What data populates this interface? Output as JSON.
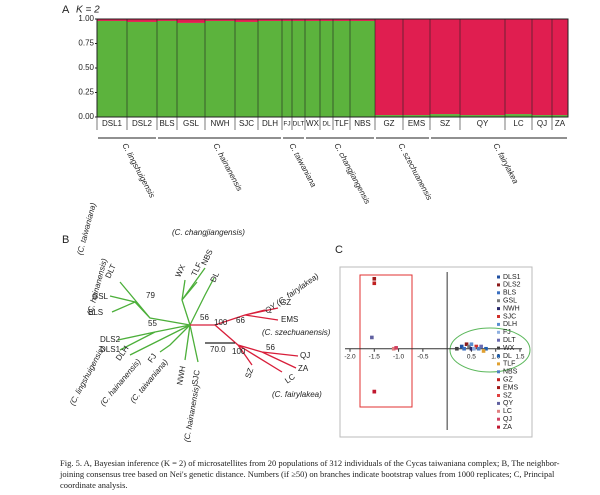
{
  "figure": {
    "panel_a": {
      "label": "A",
      "k_label": "K = 2",
      "ylim": [
        0,
        1
      ],
      "yticks": [
        {
          "value": 0,
          "label": "0.00"
        },
        {
          "value": 0.25,
          "label": "0.25"
        },
        {
          "value": 0.5,
          "label": "0.50"
        },
        {
          "value": 0.75,
          "label": "0.75"
        },
        {
          "value": 1,
          "label": "1.00"
        }
      ],
      "populations": [
        "DSL1",
        "DSL2",
        "BLS",
        "GSL",
        "NWH",
        "SJC",
        "DLH",
        "FJ",
        "DLT",
        "WX",
        "DL",
        "TLF",
        "NBS",
        "GZ",
        "EMS",
        "SZ",
        "QY",
        "LC",
        "QJ",
        "ZA"
      ],
      "cluster_1": [
        0.98,
        0.97,
        0.98,
        0.96,
        0.98,
        0.97,
        0.98,
        0.98,
        0.98,
        0.98,
        0.98,
        0.98,
        0.98,
        0.02,
        0.02,
        0.03,
        0.02,
        0.03,
        0.02,
        0.02
      ],
      "cluster_2": [
        0.02,
        0.03,
        0.02,
        0.04,
        0.02,
        0.03,
        0.02,
        0.02,
        0.02,
        0.02,
        0.02,
        0.02,
        0.02,
        0.98,
        0.98,
        0.97,
        0.98,
        0.97,
        0.98,
        0.98
      ],
      "colors": [
        "#5cb33d",
        "#e01e50"
      ],
      "species": [
        "C. lingshuigensis",
        "C. hainanensis",
        "C. taiwaniana",
        "C. changjiangensis",
        "C. szechuanensis",
        "C. fairylakea"
      ]
    },
    "panel_b": {
      "label": "B",
      "scale": "70.0",
      "tips": [
        "(C. changjiangensis)",
        "WX",
        "TLF",
        "NBS",
        "DL",
        "(C. taiwaniana)",
        "DLT",
        "(C. hainanensis)",
        "GSL",
        "BLS",
        "DLS2",
        "DLS1",
        "DLH",
        "FJ",
        "NWH",
        "SJC",
        "(C. lingshuigensis)",
        "(C. hainanensis)",
        "(C. taiwaniana)",
        "(C. hainanensis)",
        "QY (C. fairylakea)",
        "GZ",
        "EMS",
        "(C. szechuanensis)",
        "QJ",
        "ZA",
        "SZ",
        "LC",
        "(C. fairylakea)"
      ],
      "bootstrap": [
        "79",
        "55",
        "56",
        "100",
        "66",
        "100",
        "56"
      ]
    },
    "panel_c": {
      "label": "C",
      "xlim": [
        -2,
        1.5
      ],
      "ylim": [
        -1.8,
        1.7
      ],
      "xticks": [
        {
          "value": -2,
          "label": "-2.0"
        },
        {
          "value": -1.5,
          "label": "-1.5"
        },
        {
          "value": -1,
          "label": "-1.0"
        },
        {
          "value": -0.5,
          "label": "-0.5"
        },
        {
          "value": 0.5,
          "label": "0.5"
        },
        {
          "value": 1,
          "label": "1.0"
        },
        {
          "value": 1.5,
          "label": "1.5"
        }
      ],
      "points": [
        {
          "name": "DLS1",
          "x": 0.3,
          "y": 0.05,
          "color": "#1f4fa0"
        },
        {
          "name": "DLS2",
          "x": 0.4,
          "y": 0.1,
          "color": "#8b1a1a"
        },
        {
          "name": "BLS",
          "x": 0.35,
          "y": 0.0,
          "color": "#3a6fc0"
        },
        {
          "name": "GSL",
          "x": 0.45,
          "y": 0.05,
          "color": "#7a7a7a"
        },
        {
          "name": "NWH",
          "x": 0.5,
          "y": 0.0,
          "color": "#2a2a6a"
        },
        {
          "name": "SJC",
          "x": 0.6,
          "y": 0.05,
          "color": "#d0302a"
        },
        {
          "name": "DLH",
          "x": 0.5,
          "y": 0.1,
          "color": "#5a8fd0"
        },
        {
          "name": "FJ",
          "x": 0.55,
          "y": 0.0,
          "color": "#8fb0e0"
        },
        {
          "name": "DLT",
          "x": 0.7,
          "y": 0.05,
          "color": "#6a6ab0"
        },
        {
          "name": "WX",
          "x": 0.2,
          "y": 0.0,
          "color": "#404040"
        },
        {
          "name": "DL",
          "x": 0.8,
          "y": 0.0,
          "color": "#2060b0"
        },
        {
          "name": "TLF",
          "x": 0.75,
          "y": -0.05,
          "color": "#e0a030"
        },
        {
          "name": "NBS",
          "x": 0.65,
          "y": 0.0,
          "color": "#5080c0"
        },
        {
          "name": "GZ",
          "x": -1.5,
          "y": 1.45,
          "color": "#c02020"
        },
        {
          "name": "EMS",
          "x": -1.5,
          "y": 1.55,
          "color": "#a01818"
        },
        {
          "name": "SZ",
          "x": -1.5,
          "y": -0.95,
          "color": "#e04040"
        },
        {
          "name": "QY",
          "x": -1.55,
          "y": 0.25,
          "color": "#6060a0"
        },
        {
          "name": "LC",
          "x": -1.1,
          "y": 0.0,
          "color": "#e08080"
        },
        {
          "name": "QJ",
          "x": -1.05,
          "y": 0.02,
          "color": "#d04060"
        },
        {
          "name": "ZA",
          "x": -1.5,
          "y": -0.95,
          "color": "#c01830"
        }
      ]
    },
    "caption": "Fig. 5. A, Bayesian inference (K = 2) of microsatellites from 20 populations of 312 individuals of the Cycas taiwaniana complex; B, The neighbor-joining consensus tree based on Nei's genetic distance. Numbers (if ≥50) on branches indicate bootstrap values from 1000 replicates; C, Principal coordinate analysis."
  }
}
